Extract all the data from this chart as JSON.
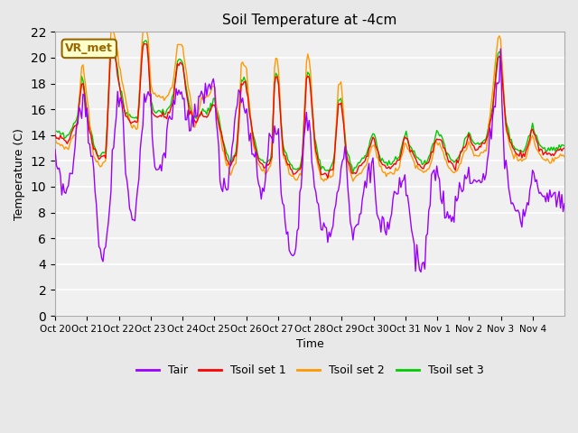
{
  "title": "Soil Temperature at -4cm",
  "xlabel": "Time",
  "ylabel": "Temperature (C)",
  "ylim": [
    0,
    22
  ],
  "yticks": [
    0,
    2,
    4,
    6,
    8,
    10,
    12,
    14,
    16,
    18,
    20,
    22
  ],
  "xtick_labels": [
    "Oct 20",
    "Oct 21",
    "Oct 22",
    "Oct 23",
    "Oct 24",
    "Oct 25",
    "Oct 26",
    "Oct 27",
    "Oct 28",
    "Oct 29",
    "Oct 30",
    "Oct 31",
    "Nov 1",
    "Nov 2",
    "Nov 3",
    "Nov 4"
  ],
  "colors": {
    "Tair": "#9900ff",
    "Tsoil1": "#ff0000",
    "Tsoil2": "#ff9900",
    "Tsoil3": "#00cc00"
  },
  "bg_color": "#e8e8e8",
  "plot_bg": "#f0f0f0",
  "annotation_text": "VR_met",
  "annotation_bg": "#ffffcc",
  "annotation_border": "#996600",
  "legend_labels": [
    "Tair",
    "Tsoil set 1",
    "Tsoil set 2",
    "Tsoil set 3"
  ]
}
